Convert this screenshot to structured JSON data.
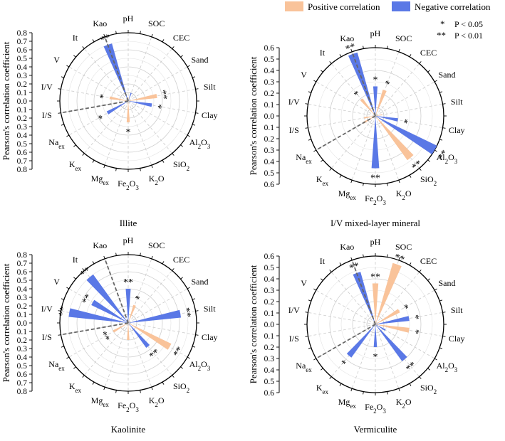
{
  "legend": {
    "entries": [
      {
        "label": "Positive correlation",
        "color": "#f9c39a"
      },
      {
        "label": "Negative correlation",
        "color": "#5a78e6"
      }
    ],
    "significance": [
      {
        "symbol": "*",
        "label": "P < 0.05"
      },
      {
        "symbol": "**",
        "label": "P < 0.01"
      }
    ]
  },
  "chart_data": [
    {
      "type": "polar-bar",
      "title": "Illite",
      "ylabel": "Pearson's correlation coefficient",
      "rmax": 0.8,
      "ticks": [
        "0.0",
        "0.1",
        "0.2",
        "0.3",
        "0.4",
        "0.5",
        "0.6",
        "0.7",
        "0.8"
      ],
      "dash_categories": [
        "Kao",
        "I/S"
      ],
      "bars": [
        {
          "category": "Kao",
          "value": -0.7,
          "sig": "**"
        },
        {
          "category": "pH",
          "value": 0.05,
          "sig": ""
        },
        {
          "category": "SOC",
          "value": -0.1,
          "sig": ""
        },
        {
          "category": "Silt",
          "value": 0.34,
          "sig": "**"
        },
        {
          "category": "Clay",
          "value": -0.28,
          "sig": "*"
        },
        {
          "category": "Fe2O3",
          "value": 0.25,
          "sig": "*"
        },
        {
          "category": "Na",
          "value": -0.28,
          "sig": "*"
        },
        {
          "category": "I/V",
          "value": 0.22,
          "sig": "*"
        }
      ]
    },
    {
      "type": "polar-bar",
      "title": "I/V mixed-layer mineral",
      "ylabel": "Pearson's correlation coefficient",
      "rmax": 0.6,
      "ticks": [
        "0.0",
        "0.1",
        "0.2",
        "0.3",
        "0.4",
        "0.5",
        "0.6"
      ],
      "dash_categories": [
        "Kao",
        "Na"
      ],
      "bars": [
        {
          "category": "Kao",
          "value": -0.58,
          "sig": "**"
        },
        {
          "category": "It",
          "value": 0.19,
          "sig": "*"
        },
        {
          "category": "pH",
          "value": -0.26,
          "sig": "*"
        },
        {
          "category": "SOC",
          "value": 0.24,
          "sig": "*"
        },
        {
          "category": "Silt",
          "value": 0.06,
          "sig": ""
        },
        {
          "category": "Clay",
          "value": -0.2,
          "sig": "*"
        },
        {
          "category": "Al2O3",
          "value": -0.6,
          "sig": "**"
        },
        {
          "category": "SiO2",
          "value": 0.48,
          "sig": "**"
        },
        {
          "category": "Fe2O3",
          "value": -0.46,
          "sig": "**"
        },
        {
          "category": "Na",
          "value": 0.12,
          "sig": ""
        },
        {
          "category": "I/S",
          "value": 0.1,
          "sig": ""
        }
      ]
    },
    {
      "type": "polar-bar",
      "title": "Kaolinite",
      "ylabel": "Pearson's correlation coefficient",
      "rmax": 0.8,
      "ticks": [
        "0.0",
        "0.1",
        "0.2",
        "0.3",
        "0.4",
        "0.5",
        "0.6",
        "0.7",
        "0.8"
      ],
      "dash_categories": [
        "Kao",
        "I/S"
      ],
      "bars": [
        {
          "category": "It",
          "value": -0.7,
          "sig": "**"
        },
        {
          "category": "V",
          "value": -0.48,
          "sig": "**"
        },
        {
          "category": "I/V",
          "value": -0.7,
          "sig": "**"
        },
        {
          "category": "pH",
          "value": -0.4,
          "sig": "**"
        },
        {
          "category": "SOC",
          "value": 0.22,
          "sig": "*"
        },
        {
          "category": "Silt",
          "value": -0.62,
          "sig": "**"
        },
        {
          "category": "Al2O3",
          "value": 0.56,
          "sig": "**"
        },
        {
          "category": "SiO2",
          "value": -0.36,
          "sig": "**"
        },
        {
          "category": "Fe2O3",
          "value": 0.2,
          "sig": ""
        },
        {
          "category": "Na",
          "value": 0.2,
          "sig": "**"
        }
      ]
    },
    {
      "type": "polar-bar",
      "title": "Vermiculite",
      "ylabel": "Pearson's correlation coefficient",
      "rmax": 0.6,
      "ticks": [
        "0.0",
        "0.1",
        "0.2",
        "0.3",
        "0.4",
        "0.5",
        "0.6"
      ],
      "dash_categories": [
        "Kao",
        "Na"
      ],
      "bars": [
        {
          "category": "Kao",
          "value": -0.48,
          "sig": "**"
        },
        {
          "category": "pH",
          "value": 0.36,
          "sig": "**"
        },
        {
          "category": "SOC",
          "value": 0.56,
          "sig": "**"
        },
        {
          "category": "Sand",
          "value": 0.24,
          "sig": "*"
        },
        {
          "category": "Silt",
          "value": -0.3,
          "sig": "*"
        },
        {
          "category": "Clay",
          "value": 0.3,
          "sig": "*"
        },
        {
          "category": "Al2O3",
          "value": -0.1,
          "sig": ""
        },
        {
          "category": "SiO2",
          "value": -0.4,
          "sig": "**"
        },
        {
          "category": "Fe2O3",
          "value": -0.2,
          "sig": "*"
        },
        {
          "category": "K",
          "value": -0.36,
          "sig": "*"
        }
      ]
    }
  ],
  "categories": [
    {
      "key": "pH",
      "label": "pH",
      "sub": ""
    },
    {
      "key": "SOC",
      "label": "SOC",
      "sub": ""
    },
    {
      "key": "CEC",
      "label": "CEC",
      "sub": ""
    },
    {
      "key": "Sand",
      "label": "Sand",
      "sub": ""
    },
    {
      "key": "Silt",
      "label": "Silt",
      "sub": ""
    },
    {
      "key": "Clay",
      "label": "Clay",
      "sub": ""
    },
    {
      "key": "Al2O3",
      "label": "Al",
      "sub": "2",
      "label2": "O",
      "sub2": "3"
    },
    {
      "key": "SiO2",
      "label": "SiO",
      "sub": "2"
    },
    {
      "key": "K2O",
      "label": "K",
      "sub": "2",
      "label2": "O",
      "sub2": ""
    },
    {
      "key": "Fe2O3",
      "label": "Fe",
      "sub": "2",
      "label2": "O",
      "sub2": "3"
    },
    {
      "key": "Mg",
      "label": "Mg",
      "sub": "ex"
    },
    {
      "key": "K",
      "label": "K",
      "sub": "ex"
    },
    {
      "key": "Na",
      "label": "Na",
      "sub": "ex"
    },
    {
      "key": "I/S",
      "label": "I/S",
      "sub": ""
    },
    {
      "key": "I/V",
      "label": "I/V",
      "sub": ""
    },
    {
      "key": "V",
      "label": "V",
      "sub": ""
    },
    {
      "key": "It",
      "label": "It",
      "sub": ""
    },
    {
      "key": "Kao",
      "label": "Kao",
      "sub": ""
    }
  ]
}
